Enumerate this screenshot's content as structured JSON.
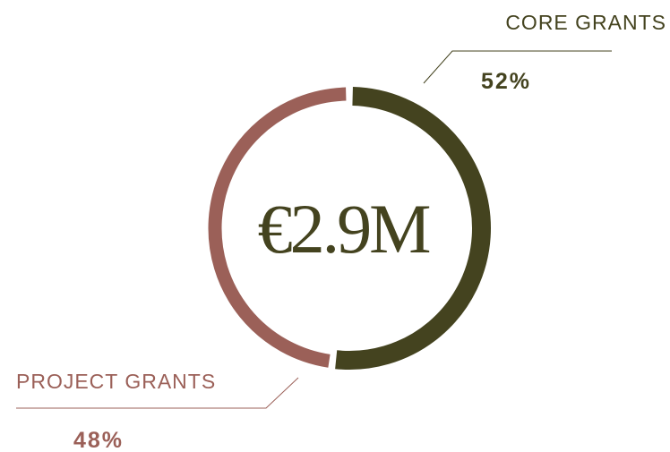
{
  "chart_data": {
    "type": "pie",
    "donut": true,
    "center_label": "€2.9M",
    "categories": [
      "CORE GRANTS",
      "PROJECT GRANTS"
    ],
    "values": [
      52,
      48
    ],
    "value_labels": [
      "52%",
      "48%"
    ],
    "colors": [
      "#44431f",
      "#9b6058"
    ]
  }
}
